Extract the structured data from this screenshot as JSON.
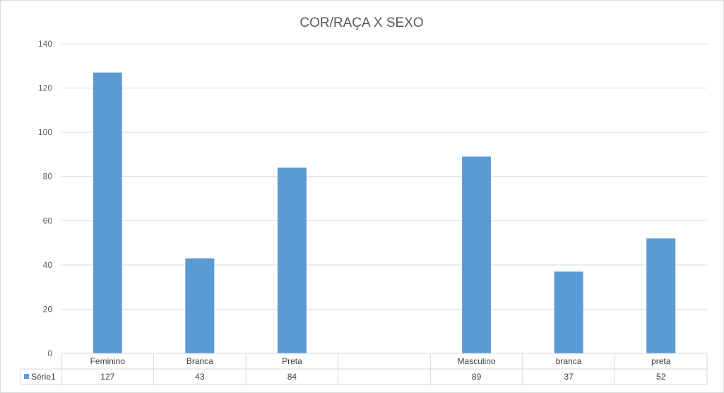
{
  "chart_data": {
    "type": "bar",
    "title": "COR/RAÇA X SEXO",
    "categories": [
      "Feminino",
      "Branca",
      "Preta",
      "",
      "Masculino",
      "branca",
      "preta"
    ],
    "series": [
      {
        "name": "Série1",
        "values": [
          127,
          43,
          84,
          null,
          89,
          37,
          52
        ],
        "color": "#5b9bd5"
      }
    ],
    "table_values": [
      "127",
      "43",
      "84",
      "",
      "89",
      "37",
      "52"
    ],
    "ylim": [
      0,
      140
    ],
    "yticks": [
      "0",
      "20",
      "40",
      "60",
      "80",
      "100",
      "120",
      "140"
    ],
    "grid": true,
    "legend": "data-table",
    "colors": {
      "gridline": "#d9d9d9",
      "text": "#595959"
    }
  }
}
